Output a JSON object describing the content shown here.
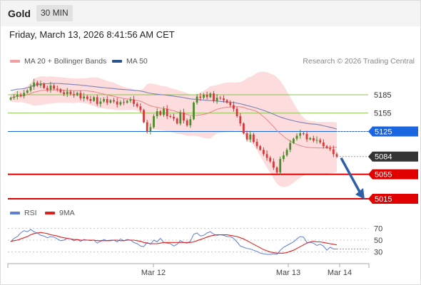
{
  "header": {
    "title": "Gold",
    "timeframe": "30 MIN"
  },
  "timestamp": "Friday, March 13, 2026 8:41:56 AM CET",
  "legend": {
    "ma20_label": "MA 20 + Bollinger Bands",
    "ma50_label": "MA 50",
    "credit": "Research © 2026 Trading Central",
    "rsi_label": "RSI",
    "rsi_ma_label": "9MA"
  },
  "colors": {
    "up": "#4c8c2b",
    "down": "#d53a3a",
    "band": "#fbd0d0",
    "ma20": "#e98585",
    "ma50": "#7b83b3",
    "support": "#e00000",
    "resistance": "#8bc34a",
    "pivot": "#1a66e0",
    "current": "#333333",
    "arrow": "#2c5fa8",
    "rsi": "#5f7fd6",
    "rsi_ma": "#e02020"
  },
  "chart_data": [
    {
      "type": "line",
      "title": "",
      "price_axis_range": [
        5008,
        5228
      ],
      "x_labels": [
        "Mar 12",
        "Mar 13",
        "Mar 14"
      ],
      "levels": [
        {
          "label": "5185",
          "value": 5185,
          "kind": "resistance"
        },
        {
          "label": "5155",
          "value": 5155,
          "kind": "resistance"
        },
        {
          "label": "5125",
          "value": 5125,
          "kind": "pivot"
        },
        {
          "label": "5084",
          "value": 5084,
          "kind": "current"
        },
        {
          "label": "5055",
          "value": 5055,
          "kind": "support"
        },
        {
          "label": "5015",
          "value": 5015,
          "kind": "support"
        }
      ],
      "closes": [
        5180,
        5182,
        5185,
        5183,
        5188,
        5192,
        5198,
        5205,
        5200,
        5203,
        5196,
        5193,
        5200,
        5195,
        5194,
        5189,
        5186,
        5190,
        5186,
        5184,
        5188,
        5179,
        5182,
        5178,
        5175,
        5181,
        5170,
        5174,
        5178,
        5172,
        5176,
        5174,
        5169,
        5173,
        5172,
        5175,
        5177,
        5170,
        5166,
        5160,
        5140,
        5125,
        5132,
        5150,
        5158,
        5152,
        5162,
        5150,
        5149,
        5146,
        5138,
        5156,
        5143,
        5135,
        5145,
        5172,
        5182,
        5180,
        5185,
        5181,
        5187,
        5175,
        5180,
        5179,
        5176,
        5172,
        5168,
        5162,
        5150,
        5138,
        5122,
        5112,
        5120,
        5108,
        5101,
        5095,
        5088,
        5082,
        5076,
        5066,
        5058,
        5080,
        5086,
        5095,
        5106,
        5113,
        5118,
        5122,
        5121,
        5112,
        5114,
        5110,
        5111,
        5107,
        5101,
        5098,
        5096,
        5088,
        5084
      ],
      "forecast_arrow": {
        "from": 5084,
        "to": 5015
      },
      "rsi_axis_ticks": [
        70,
        50,
        30
      ],
      "rsi": [
        47,
        53,
        56,
        62,
        66,
        64,
        68,
        64,
        62,
        58,
        57,
        54,
        56,
        55,
        52,
        49,
        50,
        53,
        52,
        49,
        51,
        48,
        51,
        50,
        49,
        50,
        45,
        48,
        51,
        49,
        50,
        50,
        47,
        52,
        49,
        51,
        50,
        46,
        44,
        40,
        39,
        46,
        43,
        50,
        47,
        53,
        46,
        45,
        44,
        40,
        43,
        49,
        46,
        45,
        48,
        60,
        62,
        57,
        58,
        62,
        64,
        60,
        58,
        59,
        58,
        56,
        56,
        53,
        47,
        40,
        38,
        36,
        35,
        33,
        31,
        28,
        27,
        26,
        26,
        27,
        26,
        33,
        38,
        41,
        44,
        47,
        52,
        56,
        55,
        46,
        46,
        45,
        41,
        43,
        40,
        33,
        38,
        35,
        35
      ],
      "rsi_ma": [
        48,
        49,
        50,
        52,
        54,
        56,
        59,
        61,
        62,
        63,
        62,
        61,
        59,
        58,
        57,
        55,
        54,
        53,
        52,
        51,
        51,
        50,
        50,
        50,
        50,
        50,
        49,
        49,
        49,
        49,
        49,
        50,
        50,
        49,
        49,
        50,
        50,
        50,
        49,
        48,
        46,
        45,
        44,
        44,
        44,
        45,
        46,
        46,
        46,
        46,
        46,
        46,
        46,
        46,
        46,
        47,
        49,
        51,
        53,
        55,
        57,
        58,
        59,
        59,
        59,
        59,
        58,
        57,
        56,
        54,
        52,
        49,
        46,
        43,
        40,
        37,
        34,
        32,
        30,
        29,
        28,
        28,
        28,
        29,
        31,
        33,
        36,
        39,
        42,
        45,
        47,
        48,
        47,
        47,
        46,
        45,
        44,
        43,
        42
      ]
    }
  ]
}
